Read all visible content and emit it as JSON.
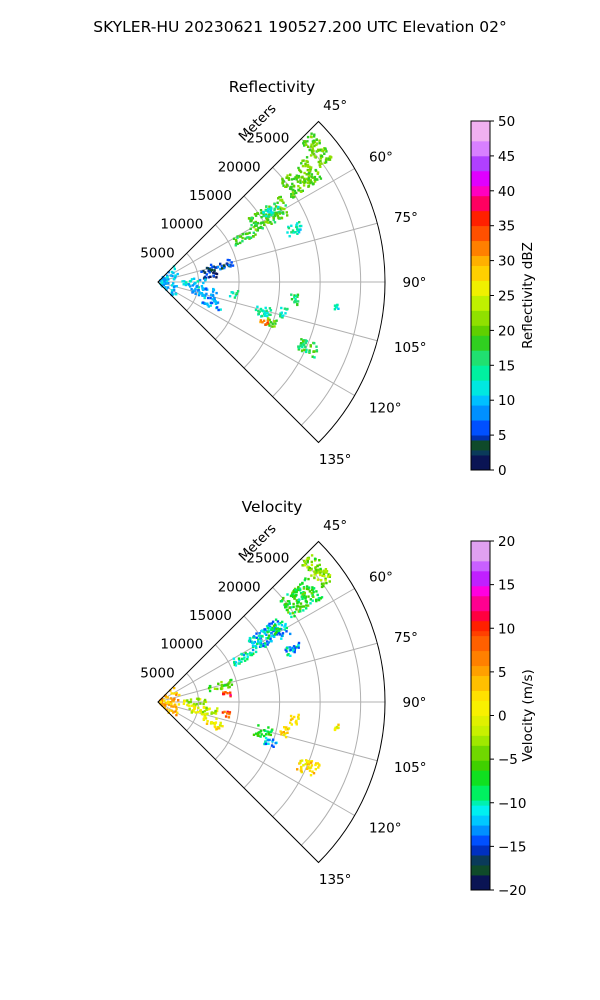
{
  "figure_title": "SKYLER-HU  20230621  190527.200 UTC Elevation 02°",
  "chart_data": [
    {
      "type": "polar-sector",
      "title": "Reflectivity",
      "r_label": "Meters",
      "r_ticks": [
        "5000",
        "10000",
        "15000",
        "20000",
        "25000"
      ],
      "r_tick_values": [
        5000,
        10000,
        15000,
        20000,
        25000
      ],
      "r_max": 28000,
      "theta_ticks": [
        "45°",
        "60°",
        "75°",
        "90°",
        "105°",
        "120°",
        "135°"
      ],
      "theta_tick_values": [
        45,
        60,
        75,
        90,
        105,
        120,
        135
      ],
      "theta_range": [
        45,
        135
      ],
      "grid": true,
      "colorbar": {
        "label": "Reflectivity dBZ",
        "min": 0,
        "max": 50,
        "ticks": [
          "0",
          "5",
          "10",
          "15",
          "20",
          "25",
          "30",
          "35",
          "40",
          "45",
          "50"
        ],
        "tick_values": [
          0,
          5,
          10,
          15,
          20,
          25,
          30,
          35,
          40,
          45,
          50
        ]
      },
      "echo_clusters": [
        {
          "az": [
            46,
            55
          ],
          "r": [
            24500,
            26500
          ],
          "value": 20
        },
        {
          "az": [
            50,
            58
          ],
          "r": [
            19500,
            24000
          ],
          "value": 20
        },
        {
          "az": [
            55,
            63
          ],
          "r": [
            13500,
            18500
          ],
          "value": 19
        },
        {
          "az": [
            60,
            65
          ],
          "r": [
            10500,
            13500
          ],
          "value": 18
        },
        {
          "az": [
            67,
            71
          ],
          "r": [
            17000,
            19000
          ],
          "value": 13
        },
        {
          "az": [
            56,
            60
          ],
          "r": [
            15500,
            17500
          ],
          "value": 13
        },
        {
          "az": [
            72,
            79
          ],
          "r": [
            6500,
            9500
          ],
          "value": 6
        },
        {
          "az": [
            74,
            86
          ],
          "r": [
            5500,
            7500
          ],
          "value": 3
        },
        {
          "az": [
            45,
            135
          ],
          "r": [
            300,
            2800
          ],
          "value": 10
        },
        {
          "az": [
            85,
            98
          ],
          "r": [
            3000,
            6000
          ],
          "value": 11
        },
        {
          "az": [
            96,
            108
          ],
          "r": [
            4000,
            7500
          ],
          "value": 8
        },
        {
          "az": [
            108,
            116
          ],
          "r": [
            6000,
            8500
          ],
          "value": 9
        },
        {
          "az": [
            96,
            102
          ],
          "r": [
            9000,
            10000
          ],
          "value": 15
        },
        {
          "az": [
            103,
            109
          ],
          "r": [
            12500,
            14500
          ],
          "value": 14
        },
        {
          "az": [
            108,
            112
          ],
          "r": [
            14000,
            15500
          ],
          "value": 20
        },
        {
          "az": [
            109,
            112
          ],
          "r": [
            13500,
            14500
          ],
          "value": 33
        },
        {
          "az": [
            111,
            116
          ],
          "r": [
            19000,
            21500
          ],
          "value": 17
        },
        {
          "az": [
            95,
            100
          ],
          "r": [
            16500,
            17500
          ],
          "value": 16
        },
        {
          "az": [
            101,
            106
          ],
          "r": [
            15500,
            16500
          ],
          "value": 14
        },
        {
          "az": [
            97,
            99
          ],
          "r": [
            22000,
            22500
          ],
          "value": 12
        }
      ]
    },
    {
      "type": "polar-sector",
      "title": "Velocity",
      "r_label": "Meters",
      "r_ticks": [
        "5000",
        "10000",
        "15000",
        "20000",
        "25000"
      ],
      "r_tick_values": [
        5000,
        10000,
        15000,
        20000,
        25000
      ],
      "r_max": 28000,
      "theta_ticks": [
        "45°",
        "60°",
        "75°",
        "90°",
        "105°",
        "120°",
        "135°"
      ],
      "theta_tick_values": [
        45,
        60,
        75,
        90,
        105,
        120,
        135
      ],
      "theta_range": [
        45,
        135
      ],
      "grid": true,
      "colorbar": {
        "label": "Velocity (m/s)",
        "min": -20,
        "max": 20,
        "ticks": [
          "−20",
          "−15",
          "−10",
          "−5",
          "0",
          "5",
          "10",
          "15",
          "20"
        ],
        "tick_values": [
          -20,
          -15,
          -10,
          -5,
          0,
          5,
          10,
          15,
          20
        ]
      },
      "echo_clusters": [
        {
          "az": [
            46,
            55
          ],
          "r": [
            24500,
            26500
          ],
          "value": -4
        },
        {
          "az": [
            50,
            58
          ],
          "r": [
            19500,
            24000
          ],
          "value": -7
        },
        {
          "az": [
            55,
            63
          ],
          "r": [
            13500,
            18500
          ],
          "value": -12
        },
        {
          "az": [
            60,
            65
          ],
          "r": [
            10500,
            13500
          ],
          "value": -10
        },
        {
          "az": [
            67,
            71
          ],
          "r": [
            17000,
            19000
          ],
          "value": -12
        },
        {
          "az": [
            56,
            60
          ],
          "r": [
            15500,
            17500
          ],
          "value": -8
        },
        {
          "az": [
            72,
            79
          ],
          "r": [
            6500,
            9500
          ],
          "value": -5
        },
        {
          "az": [
            80,
            86
          ],
          "r": [
            8000,
            9000
          ],
          "value": 10
        },
        {
          "az": [
            45,
            135
          ],
          "r": [
            300,
            2800
          ],
          "value": 4
        },
        {
          "az": [
            85,
            98
          ],
          "r": [
            3000,
            6000
          ],
          "value": -2
        },
        {
          "az": [
            96,
            108
          ],
          "r": [
            4000,
            7500
          ],
          "value": -1
        },
        {
          "az": [
            97,
            103
          ],
          "r": [
            8000,
            9000
          ],
          "value": 9
        },
        {
          "az": [
            108,
            116
          ],
          "r": [
            6000,
            8500
          ],
          "value": 1
        },
        {
          "az": [
            103,
            109
          ],
          "r": [
            12500,
            14500
          ],
          "value": -8
        },
        {
          "az": [
            108,
            112
          ],
          "r": [
            14000,
            15500
          ],
          "value": -12
        },
        {
          "az": [
            111,
            116
          ],
          "r": [
            19000,
            21500
          ],
          "value": 2
        },
        {
          "az": [
            95,
            100
          ],
          "r": [
            16500,
            17500
          ],
          "value": 1
        },
        {
          "az": [
            101,
            106
          ],
          "r": [
            15500,
            16500
          ],
          "value": 2
        },
        {
          "az": [
            97,
            99
          ],
          "r": [
            22000,
            22500
          ],
          "value": 1
        }
      ]
    }
  ]
}
